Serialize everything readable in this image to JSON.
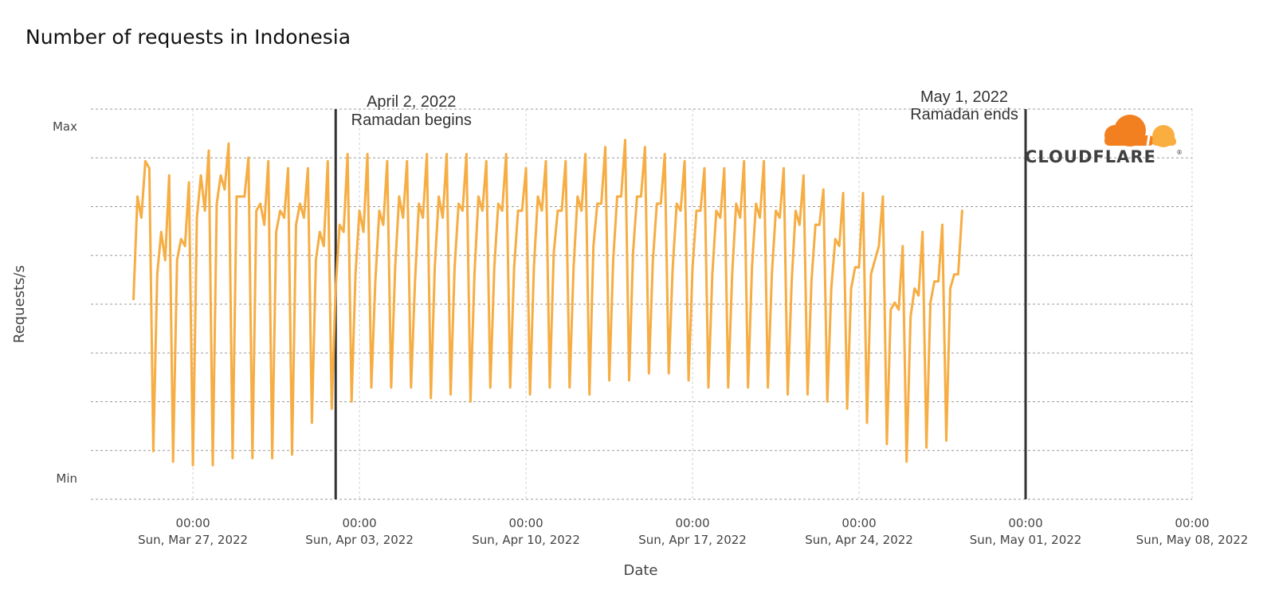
{
  "chart_data": {
    "type": "line",
    "title": "Number of requests in Indonesia",
    "xlabel": "Date",
    "ylabel": "Requests/s",
    "y_ticks": [
      "Max",
      "Min"
    ],
    "x_ticks": [
      {
        "time": "00:00",
        "date": "Sun, Mar 27, 2022"
      },
      {
        "time": "00:00",
        "date": "Sun, Apr 03, 2022"
      },
      {
        "time": "00:00",
        "date": "Sun, Apr 10, 2022"
      },
      {
        "time": "00:00",
        "date": "Sun, Apr 17, 2022"
      },
      {
        "time": "00:00",
        "date": "Sun, Apr 24, 2022"
      },
      {
        "time": "00:00",
        "date": "Sun, May 01, 2022"
      },
      {
        "time": "00:00",
        "date": "Sun, May 08, 2022"
      }
    ],
    "xlim": [
      "2022-03-22T17:00",
      "2022-05-08T00:00"
    ],
    "ylim": [
      "Min",
      "Max"
    ],
    "grid": true,
    "line_color": "#F6AD43",
    "annotations": [
      {
        "date": "2022-04-02",
        "line1": "April 2, 2022",
        "line2": "Ramadan begins"
      },
      {
        "date": "2022-05-01",
        "line1": "May 1, 2022",
        "line2": "Ramadan ends"
      }
    ],
    "series": [
      {
        "start": "2022-03-24T12:00",
        "step_hours": 4,
        "values": [
          0.51,
          0.8,
          0.74,
          0.9,
          0.88,
          0.08,
          0.58,
          0.7,
          0.62,
          0.86,
          0.05,
          0.62,
          0.68,
          0.66,
          0.84,
          0.04,
          0.74,
          0.86,
          0.76,
          0.93,
          0.04,
          0.78,
          0.86,
          0.82,
          0.95,
          0.06,
          0.8,
          0.8,
          0.8,
          0.91,
          0.06,
          0.76,
          0.78,
          0.72,
          0.9,
          0.06,
          0.7,
          0.76,
          0.74,
          0.88,
          0.07,
          0.72,
          0.78,
          0.74,
          0.88,
          0.16,
          0.62,
          0.7,
          0.66,
          0.9,
          0.2,
          0.54,
          0.72,
          0.7,
          0.92,
          0.22,
          0.58,
          0.76,
          0.7,
          0.92,
          0.26,
          0.56,
          0.76,
          0.72,
          0.9,
          0.26,
          0.6,
          0.8,
          0.74,
          0.9,
          0.26,
          0.56,
          0.78,
          0.74,
          0.92,
          0.23,
          0.6,
          0.8,
          0.74,
          0.92,
          0.24,
          0.6,
          0.78,
          0.76,
          0.92,
          0.22,
          0.58,
          0.8,
          0.76,
          0.9,
          0.26,
          0.6,
          0.78,
          0.76,
          0.92,
          0.26,
          0.6,
          0.76,
          0.76,
          0.88,
          0.24,
          0.6,
          0.8,
          0.76,
          0.9,
          0.26,
          0.64,
          0.76,
          0.76,
          0.9,
          0.26,
          0.6,
          0.8,
          0.76,
          0.92,
          0.24,
          0.66,
          0.78,
          0.78,
          0.94,
          0.28,
          0.62,
          0.8,
          0.8,
          0.96,
          0.28,
          0.64,
          0.8,
          0.8,
          0.94,
          0.3,
          0.62,
          0.78,
          0.78,
          0.92,
          0.3,
          0.6,
          0.78,
          0.76,
          0.9,
          0.28,
          0.6,
          0.76,
          0.76,
          0.88,
          0.26,
          0.58,
          0.76,
          0.74,
          0.88,
          0.26,
          0.58,
          0.78,
          0.74,
          0.9,
          0.26,
          0.6,
          0.78,
          0.74,
          0.9,
          0.26,
          0.58,
          0.76,
          0.74,
          0.88,
          0.24,
          0.56,
          0.76,
          0.72,
          0.86,
          0.24,
          0.56,
          0.72,
          0.72,
          0.82,
          0.22,
          0.54,
          0.68,
          0.66,
          0.81,
          0.2,
          0.54,
          0.6,
          0.6,
          0.81,
          0.16,
          0.58,
          0.62,
          0.66,
          0.8,
          0.1,
          0.48,
          0.5,
          0.48,
          0.66,
          0.05,
          0.46,
          0.54,
          0.52,
          0.7,
          0.09,
          0.5,
          0.56,
          0.56,
          0.72,
          0.11,
          0.54,
          0.58,
          0.58,
          0.76
        ]
      }
    ]
  },
  "logo": {
    "text": "CLOUDFLARE",
    "registered": "®",
    "colors": [
      "#F38020",
      "#FAAE40"
    ]
  }
}
